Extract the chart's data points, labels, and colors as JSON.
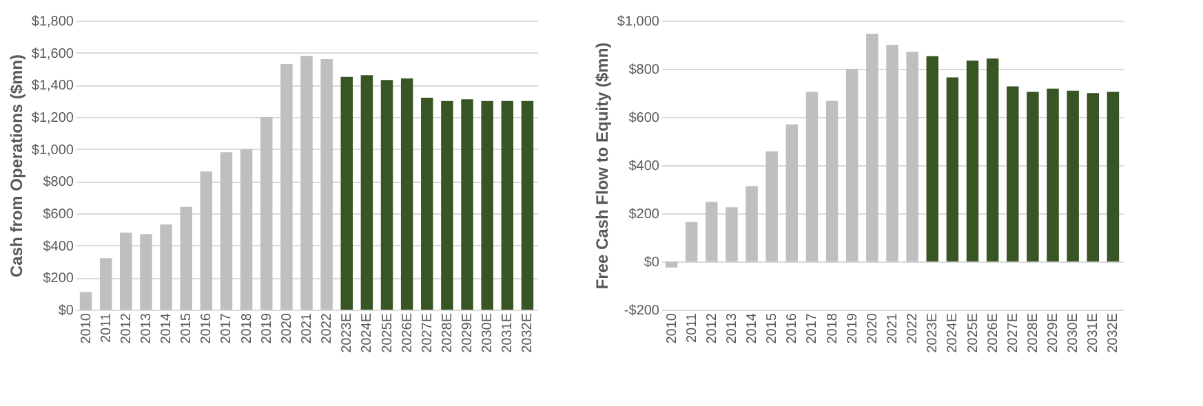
{
  "chart_data": [
    {
      "type": "bar",
      "ylabel": "Cash from Operations ($mn)",
      "categories": [
        "2010",
        "2011",
        "2012",
        "2013",
        "2014",
        "2015",
        "2016",
        "2017",
        "2018",
        "2019",
        "2020",
        "2021",
        "2022",
        "2023E",
        "2024E",
        "2025E",
        "2026E",
        "2027E",
        "2028E",
        "2029E",
        "2030E",
        "2031E",
        "2032E"
      ],
      "values": [
        110,
        320,
        480,
        470,
        530,
        640,
        860,
        980,
        1000,
        1200,
        1530,
        1580,
        1560,
        1450,
        1460,
        1430,
        1440,
        1320,
        1300,
        1310,
        1300,
        1300,
        1300
      ],
      "colors": [
        "#bfbfbf",
        "#bfbfbf",
        "#bfbfbf",
        "#bfbfbf",
        "#bfbfbf",
        "#bfbfbf",
        "#bfbfbf",
        "#bfbfbf",
        "#bfbfbf",
        "#bfbfbf",
        "#bfbfbf",
        "#bfbfbf",
        "#bfbfbf",
        "#375623",
        "#375623",
        "#375623",
        "#375623",
        "#375623",
        "#375623",
        "#375623",
        "#375623",
        "#375623",
        "#375623"
      ],
      "ylim": [
        0,
        1800
      ],
      "yticks": [
        {
          "value": 0,
          "label": "$0"
        },
        {
          "value": 200,
          "label": "$200"
        },
        {
          "value": 400,
          "label": "$400"
        },
        {
          "value": 600,
          "label": "$600"
        },
        {
          "value": 800,
          "label": "$800"
        },
        {
          "value": 1000,
          "label": "$1,000"
        },
        {
          "value": 1200,
          "label": "$1,200"
        },
        {
          "value": 1400,
          "label": "$1,400"
        },
        {
          "value": 1600,
          "label": "$1,600"
        },
        {
          "value": 1800,
          "label": "$1,800"
        }
      ],
      "grid": "y"
    },
    {
      "type": "bar",
      "ylabel": "Free Cash Flow to Equity ($mn)",
      "categories": [
        "2010",
        "2011",
        "2012",
        "2013",
        "2014",
        "2015",
        "2016",
        "2017",
        "2018",
        "2019",
        "2020",
        "2021",
        "2022",
        "2023E",
        "2024E",
        "2025E",
        "2026E",
        "2027E",
        "2028E",
        "2029E",
        "2030E",
        "2031E",
        "2032E"
      ],
      "values": [
        -25,
        164,
        248,
        225,
        313,
        457,
        569,
        704,
        667,
        800,
        946,
        899,
        871,
        853,
        764,
        834,
        843,
        727,
        704,
        718,
        709,
        699,
        704
      ],
      "colors": [
        "#bfbfbf",
        "#bfbfbf",
        "#bfbfbf",
        "#bfbfbf",
        "#bfbfbf",
        "#bfbfbf",
        "#bfbfbf",
        "#bfbfbf",
        "#bfbfbf",
        "#bfbfbf",
        "#bfbfbf",
        "#bfbfbf",
        "#bfbfbf",
        "#375623",
        "#375623",
        "#375623",
        "#375623",
        "#375623",
        "#375623",
        "#375623",
        "#375623",
        "#375623",
        "#375623"
      ],
      "ylim": [
        -200,
        1000
      ],
      "yticks": [
        {
          "value": -200,
          "label": "-$200"
        },
        {
          "value": 0,
          "label": "$0"
        },
        {
          "value": 200,
          "label": "$200"
        },
        {
          "value": 400,
          "label": "$400"
        },
        {
          "value": 600,
          "label": "$600"
        },
        {
          "value": 800,
          "label": "$800"
        },
        {
          "value": 1000,
          "label": "$1,000"
        }
      ],
      "grid": "y"
    }
  ]
}
